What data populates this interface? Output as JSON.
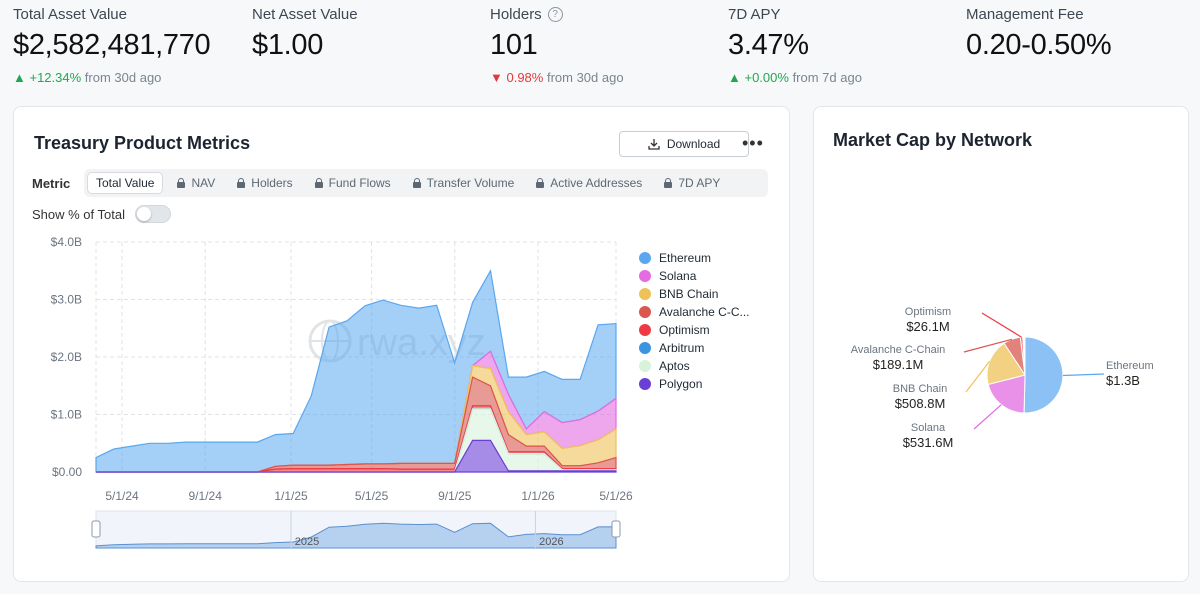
{
  "stats": {
    "total_asset_value": {
      "label": "Total Asset Value",
      "value": "$2,582,481,770",
      "change": "▲ +12.34%",
      "change_suffix": "from 30d ago"
    },
    "net_asset_value": {
      "label": "Net Asset Value",
      "value": "$1.00"
    },
    "holders": {
      "label": "Holders",
      "value": "101",
      "change": "▼ 0.98%",
      "change_suffix": "from 30d ago",
      "help_icon": "?"
    },
    "apy": {
      "label": "7D APY",
      "value": "3.47%",
      "change": "▲ +0.00%",
      "change_suffix": "from 7d ago"
    },
    "management_fee": {
      "label": "Management Fee",
      "value": "0.20-0.50%"
    }
  },
  "treasury": {
    "title": "Treasury Product Metrics",
    "download_label": "Download",
    "more_label": "•••",
    "metric_label": "Metric",
    "tabs": [
      {
        "label": "Total Value",
        "active": true,
        "locked": false
      },
      {
        "label": "NAV",
        "active": false,
        "locked": true
      },
      {
        "label": "Holders",
        "active": false,
        "locked": true
      },
      {
        "label": "Fund Flows",
        "active": false,
        "locked": true
      },
      {
        "label": "Transfer Volume",
        "active": false,
        "locked": true
      },
      {
        "label": "Active Addresses",
        "active": false,
        "locked": true
      },
      {
        "label": "7D APY",
        "active": false,
        "locked": true
      }
    ],
    "toggle_label": "Show % of Total",
    "watermark": "rwa.xyz"
  },
  "market_cap": {
    "title": "Market Cap by Network",
    "labels": [
      {
        "name": "Optimism",
        "value": "$26.1M"
      },
      {
        "name": "Avalanche C-Chain",
        "value": "$189.1M"
      },
      {
        "name": "BNB Chain",
        "value": "$508.8M"
      },
      {
        "name": "Solana",
        "value": "$531.6M"
      },
      {
        "name": "Ethereum",
        "value": "$1.3B"
      }
    ]
  },
  "colors": {
    "ethereum": "#5aa7ef",
    "solana": "#e26ce0",
    "bnb": "#eec25a",
    "avalanche": "#d9574f",
    "optimism": "#ef3a45",
    "arbitrum": "#3c94e0",
    "aptos": "#d7f3dc",
    "polygon": "#6a3fd6"
  },
  "chart_data": [
    {
      "type": "area",
      "stacked": true,
      "y_ticks": [
        "$4.0B",
        "$3.0B",
        "$2.0B",
        "$1.0B",
        "$0.00"
      ],
      "x_ticks": [
        "5/1/24",
        "9/1/24",
        "1/1/25",
        "5/1/25",
        "9/1/25",
        "1/1/26",
        "5/1/26"
      ],
      "ylim": [
        0,
        4.0
      ],
      "y_unit": "B",
      "x": [
        "2024-04",
        "2024-05",
        "2024-06",
        "2024-07",
        "2024-08",
        "2024-09",
        "2024-10",
        "2024-11",
        "2024-12",
        "2025-01",
        "2025-02",
        "2025-03",
        "2025-03-20",
        "2025-03-25",
        "2025-04",
        "2025-05",
        "2025-06",
        "2025-07",
        "2025-08",
        "2025-09",
        "2025-10",
        "2025-10-20",
        "2025-11",
        "2025-11-20",
        "2025-12",
        "2026-01",
        "2026-02",
        "2026-03",
        "2026-04",
        "2026-05"
      ],
      "series": [
        {
          "name": "Polygon",
          "key": "polygon",
          "values": [
            0,
            0,
            0,
            0,
            0,
            0,
            0,
            0,
            0,
            0,
            0,
            0,
            0,
            0,
            0,
            0,
            0,
            0,
            0,
            0,
            0,
            0.55,
            0.55,
            0.02,
            0.02,
            0.02,
            0.02,
            0.02,
            0.02,
            0.02
          ]
        },
        {
          "name": "Aptos",
          "key": "aptos",
          "values": [
            0,
            0,
            0,
            0,
            0,
            0,
            0,
            0,
            0,
            0,
            0,
            0,
            0,
            0,
            0,
            0,
            0,
            0,
            0,
            0,
            0,
            0.55,
            0.55,
            0.3,
            0.3,
            0.3,
            0.02,
            0.02,
            0.02,
            0.02
          ]
        },
        {
          "name": "Arbitrum",
          "key": "arbitrum",
          "values": [
            0,
            0,
            0,
            0,
            0,
            0,
            0,
            0,
            0,
            0,
            0,
            0,
            0,
            0,
            0,
            0,
            0,
            0,
            0,
            0,
            0,
            0,
            0,
            0,
            0,
            0,
            0,
            0,
            0,
            0
          ]
        },
        {
          "name": "Optimism",
          "key": "optimism",
          "values": [
            0,
            0,
            0,
            0,
            0,
            0,
            0,
            0,
            0,
            0,
            0.05,
            0.06,
            0.06,
            0.06,
            0.06,
            0.06,
            0.06,
            0.05,
            0.05,
            0.05,
            0.05,
            0.05,
            0.05,
            0.03,
            0.03,
            0.03,
            0.02,
            0.02,
            0.02,
            0.02
          ]
        },
        {
          "name": "Avalanche C-Chain",
          "key": "avalanche",
          "values": [
            0,
            0,
            0,
            0,
            0,
            0,
            0,
            0,
            0,
            0,
            0.05,
            0.06,
            0.06,
            0.06,
            0.07,
            0.08,
            0.08,
            0.1,
            0.1,
            0.1,
            0.1,
            0.5,
            0.35,
            0.3,
            0.1,
            0.1,
            0.05,
            0.05,
            0.1,
            0.19
          ]
        },
        {
          "name": "BNB Chain",
          "key": "bnb",
          "values": [
            0,
            0,
            0,
            0,
            0,
            0,
            0,
            0,
            0,
            0,
            0,
            0,
            0,
            0,
            0,
            0,
            0,
            0,
            0,
            0,
            0,
            0.2,
            0.3,
            0.4,
            0.2,
            0.25,
            0.3,
            0.35,
            0.4,
            0.5
          ]
        },
        {
          "name": "Solana",
          "key": "solana",
          "values": [
            0,
            0,
            0,
            0,
            0,
            0,
            0,
            0,
            0,
            0,
            0,
            0,
            0,
            0,
            0,
            0,
            0,
            0,
            0,
            0,
            0,
            0,
            0.3,
            0.3,
            0.1,
            0.35,
            0.45,
            0.45,
            0.5,
            0.53
          ]
        },
        {
          "name": "Ethereum",
          "key": "ethereum",
          "values": [
            0.25,
            0.4,
            0.45,
            0.5,
            0.5,
            0.52,
            0.52,
            0.52,
            0.52,
            0.52,
            0.55,
            0.55,
            1.2,
            2.4,
            2.5,
            2.75,
            2.85,
            2.75,
            2.7,
            2.75,
            1.75,
            1.1,
            1.4,
            0.3,
            0.9,
            0.7,
            0.75,
            0.7,
            1.5,
            1.3
          ]
        }
      ],
      "legend": [
        "Ethereum",
        "Solana",
        "BNB Chain",
        "Avalanche C-C...",
        "Optimism",
        "Arbitrum",
        "Aptos",
        "Polygon"
      ],
      "legend_keys": [
        "ethereum",
        "solana",
        "bnb",
        "avalanche",
        "optimism",
        "arbitrum",
        "aptos",
        "polygon"
      ],
      "grid": true,
      "legend_position": "right"
    },
    {
      "type": "area",
      "role": "range-navigator",
      "x_ticks": [
        "2025",
        "2026"
      ],
      "values": [
        0.25,
        0.4,
        0.45,
        0.5,
        0.5,
        0.52,
        0.52,
        0.52,
        0.52,
        0.52,
        0.65,
        0.73,
        1.32,
        2.52,
        2.63,
        2.89,
        2.99,
        2.9,
        2.85,
        2.9,
        1.9,
        2.95,
        3.0,
        1.35,
        1.65,
        1.75,
        1.61,
        1.61,
        2.56,
        2.58
      ]
    },
    {
      "type": "pie",
      "labels": [
        "Ethereum",
        "Solana",
        "BNB Chain",
        "Avalanche C-Chain",
        "Optimism",
        "Arbitrum",
        "Aptos",
        "Polygon"
      ],
      "keys": [
        "ethereum",
        "solana",
        "bnb",
        "avalanche",
        "optimism",
        "arbitrum",
        "aptos",
        "polygon"
      ],
      "values": [
        1300,
        531.6,
        508.8,
        189.1,
        26.1,
        10,
        8,
        6
      ],
      "unit": "$M"
    }
  ]
}
